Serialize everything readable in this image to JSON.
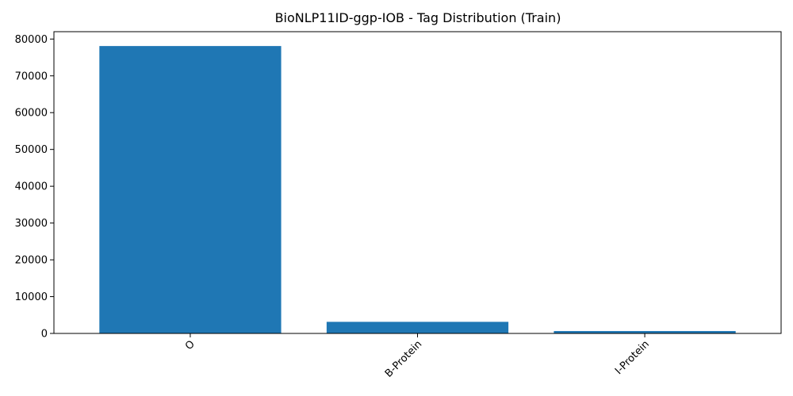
{
  "chart_data": {
    "type": "bar",
    "title": "BioNLP11ID-ggp-IOB - Tag Distribution (Train)",
    "xlabel": "",
    "ylabel": "",
    "categories": [
      "O",
      "B-Protein",
      "I-Protein"
    ],
    "values": [
      78100,
      3150,
      650
    ],
    "ylim": [
      0,
      82000
    ],
    "yticks": [
      0,
      10000,
      20000,
      30000,
      40000,
      50000,
      60000,
      70000,
      80000
    ],
    "ytick_labels": [
      "0",
      "10000",
      "20000",
      "30000",
      "40000",
      "50000",
      "60000",
      "70000",
      "80000"
    ],
    "xtick_rotation": 45,
    "grid": false,
    "legend": "none",
    "bar_color": "#1f77b4"
  }
}
